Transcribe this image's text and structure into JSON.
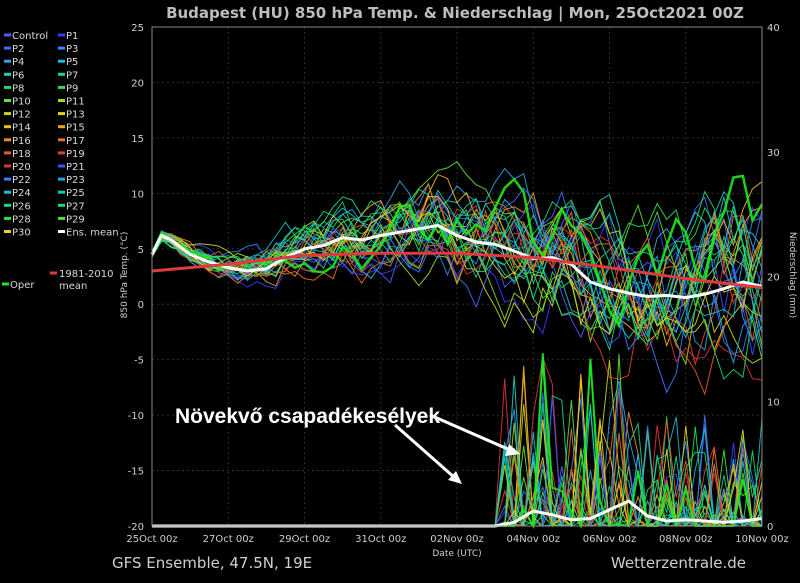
{
  "chart_data": {
    "type": "line",
    "title": "Budapest  (HU)  850 hPa Temp. & Niederschlag | Mon, 25Oct2021 00Z",
    "xlabel": "Date (UTC)",
    "ylabel": "850 hPa Temp. (°C)",
    "ylabel_right": "Niederschlag (mm)",
    "x_ticks": [
      "25Oct 00z",
      "27Oct 00z",
      "29Oct 00z",
      "31Oct 00z",
      "02Nov 00z",
      "04Nov 00z",
      "06Nov 00z",
      "08Nov 00z",
      "10Nov 00z"
    ],
    "x_days": [
      0,
      16
    ],
    "ylim": [
      -20,
      25
    ],
    "y_ticks": [
      25,
      20,
      15,
      10,
      5,
      0,
      -5,
      -10,
      -15,
      -20
    ],
    "ylim_right": [
      0,
      40
    ],
    "y_ticks_right": [
      40,
      30,
      20,
      10,
      0
    ],
    "grid": true,
    "legend_position": "left",
    "legend": [
      {
        "name": "Control",
        "color": "#4f5bff"
      },
      {
        "name": "P1",
        "color": "#3a3aff"
      },
      {
        "name": "P2",
        "color": "#3d6bff"
      },
      {
        "name": "P3",
        "color": "#2f8bff"
      },
      {
        "name": "P4",
        "color": "#2fa6e8"
      },
      {
        "name": "P5",
        "color": "#19c1d8"
      },
      {
        "name": "P6",
        "color": "#1fd0bf"
      },
      {
        "name": "P7",
        "color": "#12d89a"
      },
      {
        "name": "P8",
        "color": "#19dd78"
      },
      {
        "name": "P9",
        "color": "#25e05a"
      },
      {
        "name": "P10",
        "color": "#5ee035"
      },
      {
        "name": "P11",
        "color": "#9bdc22"
      },
      {
        "name": "P12",
        "color": "#c7d81c"
      },
      {
        "name": "P13",
        "color": "#e2d21a"
      },
      {
        "name": "P14",
        "color": "#f0bd19"
      },
      {
        "name": "P15",
        "color": "#f0a21c"
      },
      {
        "name": "P16",
        "color": "#ec8a22"
      },
      {
        "name": "P17",
        "color": "#e97026"
      },
      {
        "name": "P18",
        "color": "#e35a2a"
      },
      {
        "name": "P19",
        "color": "#e04030"
      },
      {
        "name": "P20",
        "color": "#dd3434"
      },
      {
        "name": "P21",
        "color": "#3a50ff"
      },
      {
        "name": "P22",
        "color": "#3f7aff"
      },
      {
        "name": "P23",
        "color": "#25a0e6"
      },
      {
        "name": "P24",
        "color": "#1cbcd0"
      },
      {
        "name": "P25",
        "color": "#18c9b0"
      },
      {
        "name": "P26",
        "color": "#14d48e"
      },
      {
        "name": "P27",
        "color": "#1adc6c"
      },
      {
        "name": "P28",
        "color": "#2ae052"
      },
      {
        "name": "P29",
        "color": "#4ee03a"
      },
      {
        "name": "P30",
        "color": "#e8d224"
      },
      {
        "name": "Ens. mean",
        "color": "#ffffff"
      },
      {
        "name": "1981-2010 mean",
        "color": "#e03a3a"
      },
      {
        "name": "Oper",
        "color": "#1ee81e"
      }
    ],
    "series": [
      {
        "name": "Ens. mean",
        "kind": "temperature",
        "x": [
          0,
          0.25,
          0.5,
          1,
          1.5,
          2,
          2.5,
          3,
          3.5,
          4,
          4.5,
          5,
          5.5,
          6,
          6.5,
          7,
          7.5,
          8,
          8.5,
          9,
          9.5,
          10,
          10.5,
          11,
          11.5,
          12,
          12.5,
          13,
          13.5,
          14,
          14.5,
          15,
          15.5,
          16
        ],
        "y": [
          4.5,
          6.2,
          5.8,
          4.5,
          3.8,
          3.3,
          3.0,
          3.2,
          4.2,
          5.0,
          5.3,
          6.0,
          5.8,
          6.2,
          6.5,
          6.8,
          7.1,
          6.2,
          5.6,
          5.4,
          4.8,
          4.1,
          4.2,
          3.6,
          2.0,
          1.4,
          1.0,
          0.7,
          0.8,
          0.6,
          0.9,
          1.4,
          2.0,
          1.6
        ]
      },
      {
        "name": "1981-2010 mean",
        "kind": "temperature",
        "x": [
          0,
          2,
          4,
          6,
          8,
          10,
          12,
          14,
          16
        ],
        "y": [
          3.0,
          3.6,
          4.4,
          4.6,
          4.6,
          4.2,
          3.3,
          2.3,
          1.5
        ]
      },
      {
        "name": "Ens. mean",
        "kind": "precipitation",
        "x": [
          0,
          9,
          9.5,
          10,
          10.5,
          11,
          11.5,
          12,
          12.5,
          13,
          13.5,
          14,
          14.5,
          15,
          15.5,
          16
        ],
        "y": [
          0,
          0,
          0.3,
          1.2,
          0.9,
          0.5,
          0.6,
          1.3,
          2.0,
          0.8,
          0.4,
          0.5,
          0.4,
          0.3,
          0.4,
          0.6
        ]
      }
    ],
    "annotation": "Növekvő csapadékesélyek"
  },
  "footer": {
    "left": "GFS Ensemble, 47.5N, 19E",
    "right": "Wetterzentrale.de"
  }
}
